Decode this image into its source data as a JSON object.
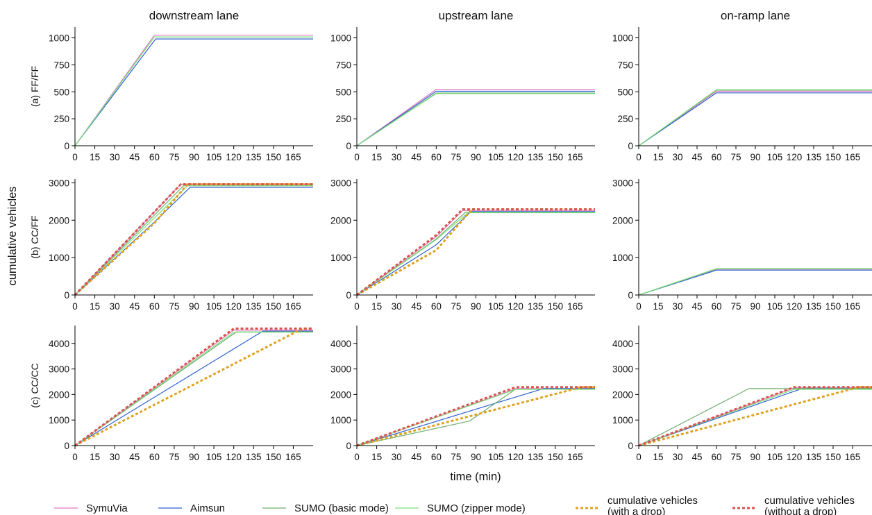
{
  "column_titles": [
    "downstream lane",
    "upstream lane",
    "on-ramp lane"
  ],
  "row_labels": [
    "(a) FF/FF",
    "(b) CC/FF",
    "(c) CC/CC"
  ],
  "ylabel": "cumulative vehicles",
  "xlabel": "time (min)",
  "colors": {
    "SymuVia": "#e377c2",
    "Aimsun": "#2e5fd0",
    "SUMO_basic": "#6fae6f",
    "SUMO_zipper": "#7ee07e",
    "with_drop": "#dea21f",
    "without_drop": "#d9534f"
  },
  "legend": [
    {
      "label": "SymuVia",
      "color": "#e377c2",
      "dashed": false
    },
    {
      "label": "Aimsun",
      "color": "#2e5fd0",
      "dashed": false
    },
    {
      "label": "SUMO (basic mode)",
      "color": "#6fae6f",
      "dashed": false
    },
    {
      "label": "SUMO (zipper mode)",
      "color": "#7ee07e",
      "dashed": false
    },
    {
      "label": "cumulative vehicles\n(with a drop)",
      "color": "#dea21f",
      "dashed": true
    },
    {
      "label": "cumulative vehicles\n(without a drop)",
      "color": "#d9534f",
      "dashed": true
    }
  ],
  "chart_data": [
    {
      "type": "line",
      "row": 0,
      "col": 0,
      "xlim": [
        0,
        180
      ],
      "ylim": [
        0,
        1100
      ],
      "x_ticks": [
        0,
        15,
        30,
        45,
        60,
        75,
        90,
        105,
        120,
        135,
        150,
        165
      ],
      "y_ticks": [
        0,
        250,
        500,
        750,
        1000
      ],
      "series": [
        {
          "name": "SymuVia",
          "points": [
            [
              0,
              0
            ],
            [
              60,
              1025
            ],
            [
              180,
              1025
            ]
          ]
        },
        {
          "name": "Aimsun",
          "points": [
            [
              0,
              0
            ],
            [
              61,
              990
            ],
            [
              180,
              990
            ]
          ]
        },
        {
          "name": "SUMO (basic mode)",
          "points": [
            [
              0,
              0
            ],
            [
              60,
              1008
            ],
            [
              180,
              1008
            ]
          ]
        },
        {
          "name": "SUMO (zipper mode)",
          "points": [
            [
              0,
              0
            ],
            [
              60,
              1008
            ],
            [
              180,
              1008
            ]
          ]
        }
      ]
    },
    {
      "type": "line",
      "row": 0,
      "col": 1,
      "xlim": [
        0,
        180
      ],
      "ylim": [
        0,
        1100
      ],
      "x_ticks": [
        0,
        15,
        30,
        45,
        60,
        75,
        90,
        105,
        120,
        135,
        150,
        165
      ],
      "y_ticks": [
        0,
        250,
        500,
        750,
        1000
      ],
      "series": [
        {
          "name": "SymuVia",
          "points": [
            [
              0,
              0
            ],
            [
              60,
              522
            ],
            [
              180,
              522
            ]
          ]
        },
        {
          "name": "Aimsun",
          "points": [
            [
              0,
              0
            ],
            [
              60,
              505
            ],
            [
              180,
              505
            ]
          ]
        },
        {
          "name": "SUMO (basic mode)",
          "points": [
            [
              0,
              0
            ],
            [
              60,
              488
            ],
            [
              180,
              488
            ]
          ]
        },
        {
          "name": "SUMO (zipper mode)",
          "points": [
            [
              0,
              0
            ],
            [
              60,
              483
            ],
            [
              180,
              483
            ]
          ]
        }
      ]
    },
    {
      "type": "line",
      "row": 0,
      "col": 2,
      "xlim": [
        0,
        180
      ],
      "ylim": [
        0,
        1100
      ],
      "x_ticks": [
        0,
        15,
        30,
        45,
        60,
        75,
        90,
        105,
        120,
        135,
        150,
        165
      ],
      "y_ticks": [
        0,
        250,
        500,
        750,
        1000
      ],
      "series": [
        {
          "name": "SymuVia",
          "points": [
            [
              0,
              0
            ],
            [
              60,
              505
            ],
            [
              180,
              505
            ]
          ]
        },
        {
          "name": "Aimsun",
          "points": [
            [
              0,
              0
            ],
            [
              60,
              490
            ],
            [
              180,
              490
            ]
          ]
        },
        {
          "name": "SUMO (basic mode)",
          "points": [
            [
              0,
              0
            ],
            [
              60,
              515
            ],
            [
              180,
              515
            ]
          ]
        },
        {
          "name": "SUMO (zipper mode)",
          "points": [
            [
              0,
              0
            ],
            [
              60,
              520
            ],
            [
              180,
              520
            ]
          ]
        }
      ]
    },
    {
      "type": "line",
      "row": 1,
      "col": 0,
      "xlim": [
        0,
        180
      ],
      "ylim": [
        0,
        3100
      ],
      "x_ticks": [
        0,
        15,
        30,
        45,
        60,
        75,
        90,
        105,
        120,
        135,
        150,
        165
      ],
      "y_ticks": [
        0,
        1000,
        2000,
        3000
      ],
      "series": [
        {
          "name": "SymuVia",
          "points": [
            [
              0,
              0
            ],
            [
              80,
              2960
            ],
            [
              180,
              2960
            ]
          ]
        },
        {
          "name": "Aimsun",
          "points": [
            [
              0,
              0
            ],
            [
              60,
              1950
            ],
            [
              87,
              2880
            ],
            [
              180,
              2880
            ]
          ]
        },
        {
          "name": "SUMO (basic mode)",
          "points": [
            [
              0,
              0
            ],
            [
              82,
              2920
            ],
            [
              180,
              2920
            ]
          ]
        },
        {
          "name": "SUMO (zipper mode)",
          "points": [
            [
              0,
              0
            ],
            [
              85,
              2920
            ],
            [
              180,
              2920
            ]
          ]
        },
        {
          "name": "cumulative vehicles\n(with a drop)",
          "points": [
            [
              0,
              0
            ],
            [
              60,
              1920
            ],
            [
              85,
              2960
            ],
            [
              180,
              2960
            ]
          ]
        },
        {
          "name": "cumulative vehicles\n(without a drop)",
          "points": [
            [
              0,
              0
            ],
            [
              80,
              2960
            ],
            [
              180,
              2960
            ]
          ]
        }
      ]
    },
    {
      "type": "line",
      "row": 1,
      "col": 1,
      "xlim": [
        0,
        180
      ],
      "ylim": [
        0,
        3100
      ],
      "x_ticks": [
        0,
        15,
        30,
        45,
        60,
        75,
        90,
        105,
        120,
        135,
        150,
        165
      ],
      "y_ticks": [
        0,
        1000,
        2000,
        3000
      ],
      "series": [
        {
          "name": "SymuVia",
          "points": [
            [
              0,
              0
            ],
            [
              60,
              1560
            ],
            [
              80,
              2260
            ],
            [
              180,
              2260
            ]
          ]
        },
        {
          "name": "Aimsun",
          "points": [
            [
              0,
              0
            ],
            [
              60,
              1340
            ],
            [
              86,
              2230
            ],
            [
              180,
              2230
            ]
          ]
        },
        {
          "name": "SUMO (basic mode)",
          "points": [
            [
              0,
              0
            ],
            [
              60,
              1500
            ],
            [
              82,
              2210
            ],
            [
              180,
              2210
            ]
          ]
        },
        {
          "name": "SUMO (zipper mode)",
          "points": [
            [
              0,
              0
            ],
            [
              60,
              1480
            ],
            [
              84,
              2200
            ],
            [
              180,
              2200
            ]
          ]
        },
        {
          "name": "cumulative vehicles\n(with a drop)",
          "points": [
            [
              0,
              0
            ],
            [
              60,
              1200
            ],
            [
              87,
              2290
            ],
            [
              180,
              2290
            ]
          ]
        },
        {
          "name": "cumulative vehicles\n(without a drop)",
          "points": [
            [
              0,
              0
            ],
            [
              60,
              1600
            ],
            [
              80,
              2290
            ],
            [
              180,
              2290
            ]
          ]
        }
      ]
    },
    {
      "type": "line",
      "row": 1,
      "col": 2,
      "xlim": [
        0,
        180
      ],
      "ylim": [
        0,
        3100
      ],
      "x_ticks": [
        0,
        15,
        30,
        45,
        60,
        75,
        90,
        105,
        120,
        135,
        150,
        165
      ],
      "y_ticks": [
        0,
        1000,
        2000,
        3000
      ],
      "series": [
        {
          "name": "SymuVia",
          "points": [
            [
              0,
              0
            ],
            [
              60,
              690
            ],
            [
              180,
              690
            ]
          ]
        },
        {
          "name": "Aimsun",
          "points": [
            [
              0,
              0
            ],
            [
              60,
              665
            ],
            [
              180,
              665
            ]
          ]
        },
        {
          "name": "SUMO (basic mode)",
          "points": [
            [
              0,
              0
            ],
            [
              60,
              700
            ],
            [
              180,
              700
            ]
          ]
        },
        {
          "name": "SUMO (zipper mode)",
          "points": [
            [
              0,
              0
            ],
            [
              60,
              705
            ],
            [
              180,
              705
            ]
          ]
        }
      ]
    },
    {
      "type": "line",
      "row": 2,
      "col": 0,
      "xlim": [
        0,
        180
      ],
      "ylim": [
        0,
        4700
      ],
      "x_ticks": [
        0,
        15,
        30,
        45,
        60,
        75,
        90,
        105,
        120,
        135,
        150,
        165
      ],
      "y_ticks": [
        0,
        1000,
        2000,
        3000,
        4000
      ],
      "series": [
        {
          "name": "SymuVia",
          "points": [
            [
              0,
              0
            ],
            [
              120,
              4520
            ],
            [
              180,
              4520
            ]
          ]
        },
        {
          "name": "Aimsun",
          "points": [
            [
              0,
              0
            ],
            [
              142,
              4480
            ],
            [
              180,
              4480
            ]
          ]
        },
        {
          "name": "SUMO (basic mode)",
          "points": [
            [
              0,
              0
            ],
            [
              122,
              4450
            ],
            [
              180,
              4450
            ]
          ]
        },
        {
          "name": "SUMO (zipper mode)",
          "points": [
            [
              0,
              0
            ],
            [
              120,
              4440
            ],
            [
              180,
              4440
            ]
          ]
        },
        {
          "name": "cumulative vehicles\n(with a drop)",
          "points": [
            [
              0,
              0
            ],
            [
              172,
              4580
            ],
            [
              180,
              4580
            ]
          ]
        },
        {
          "name": "cumulative vehicles\n(without a drop)",
          "points": [
            [
              0,
              0
            ],
            [
              120,
              4580
            ],
            [
              180,
              4580
            ]
          ]
        }
      ]
    },
    {
      "type": "line",
      "row": 2,
      "col": 1,
      "xlim": [
        0,
        180
      ],
      "ylim": [
        0,
        4700
      ],
      "x_ticks": [
        0,
        15,
        30,
        45,
        60,
        75,
        90,
        105,
        120,
        135,
        150,
        165
      ],
      "y_ticks": [
        0,
        1000,
        2000,
        3000,
        4000
      ],
      "series": [
        {
          "name": "SymuVia",
          "points": [
            [
              0,
              0
            ],
            [
              120,
              2230
            ],
            [
              180,
              2230
            ]
          ]
        },
        {
          "name": "Aimsun",
          "points": [
            [
              0,
              0
            ],
            [
              141,
              2230
            ],
            [
              180,
              2230
            ]
          ]
        },
        {
          "name": "SUMO (basic mode)",
          "points": [
            [
              0,
              0
            ],
            [
              85,
              960
            ],
            [
              120,
              2210
            ],
            [
              180,
              2210
            ]
          ]
        },
        {
          "name": "SUMO (zipper mode)",
          "points": [
            [
              0,
              0
            ],
            [
              120,
              2200
            ],
            [
              180,
              2200
            ]
          ]
        },
        {
          "name": "cumulative vehicles\n(with a drop)",
          "points": [
            [
              0,
              0
            ],
            [
              170,
              2290
            ],
            [
              180,
              2290
            ]
          ]
        },
        {
          "name": "cumulative vehicles\n(without a drop)",
          "points": [
            [
              0,
              0
            ],
            [
              120,
              2290
            ],
            [
              180,
              2290
            ]
          ]
        }
      ]
    },
    {
      "type": "line",
      "row": 2,
      "col": 2,
      "xlim": [
        0,
        180
      ],
      "ylim": [
        0,
        4700
      ],
      "x_ticks": [
        0,
        15,
        30,
        45,
        60,
        75,
        90,
        105,
        120,
        135,
        150,
        165
      ],
      "y_ticks": [
        0,
        1000,
        2000,
        3000,
        4000
      ],
      "series": [
        {
          "name": "SymuVia",
          "points": [
            [
              0,
              0
            ],
            [
              120,
              2260
            ],
            [
              180,
              2260
            ]
          ]
        },
        {
          "name": "Aimsun",
          "points": [
            [
              0,
              0
            ],
            [
              127,
              2250
            ],
            [
              180,
              2250
            ]
          ]
        },
        {
          "name": "SUMO (basic mode)",
          "points": [
            [
              0,
              0
            ],
            [
              85,
              2230
            ],
            [
              120,
              2230
            ],
            [
              180,
              2230
            ]
          ]
        },
        {
          "name": "SUMO (zipper mode)",
          "points": [
            [
              0,
              0
            ],
            [
              120,
              2200
            ],
            [
              180,
              2200
            ]
          ]
        },
        {
          "name": "cumulative vehicles\n(with a drop)",
          "points": [
            [
              0,
              0
            ],
            [
              170,
              2290
            ],
            [
              180,
              2290
            ]
          ]
        },
        {
          "name": "cumulative vehicles\n(without a drop)",
          "points": [
            [
              0,
              0
            ],
            [
              120,
              2290
            ],
            [
              180,
              2290
            ]
          ]
        }
      ]
    }
  ]
}
